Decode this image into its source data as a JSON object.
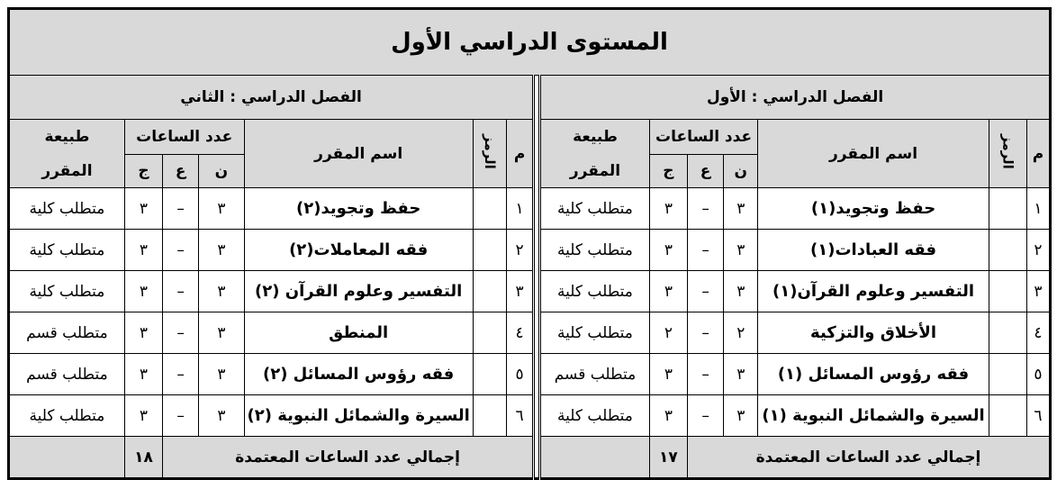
{
  "title": "المستوى الدراسي الأول",
  "headers": {
    "num": "م",
    "code": "الرمز",
    "name": "اسم المقرر",
    "hours": "عدد الساعات",
    "n": "ن",
    "e": "ع",
    "j": "ج",
    "type_line1": "طبيعة",
    "type_line2": "المقرر",
    "total_label": "إجمالي عدد الساعات المعتمدة"
  },
  "semesters": [
    {
      "label": "الفصل الدراسي : الأول",
      "total": "١٧",
      "courses": [
        {
          "num": "١",
          "code": "",
          "name": "حفظ وتجويد(١)",
          "n": "٣",
          "e": "–",
          "j": "٣",
          "type": "متطلب كلية"
        },
        {
          "num": "٢",
          "code": "",
          "name": "فقه العبادات(١)",
          "n": "٣",
          "e": "–",
          "j": "٣",
          "type": "متطلب كلية"
        },
        {
          "num": "٣",
          "code": "",
          "name": "التفسير وعلوم القرآن(١)",
          "n": "٣",
          "e": "–",
          "j": "٣",
          "type": "متطلب كلية"
        },
        {
          "num": "٤",
          "code": "",
          "name": "الأخلاق والتزكية",
          "n": "٢",
          "e": "–",
          "j": "٢",
          "type": "متطلب كلية"
        },
        {
          "num": "٥",
          "code": "",
          "name": "فقه رؤوس المسائل (١)",
          "n": "٣",
          "e": "–",
          "j": "٣",
          "type": "متطلب قسم"
        },
        {
          "num": "٦",
          "code": "",
          "name": "السيرة والشمائل النبوية (١)",
          "n": "٣",
          "e": "–",
          "j": "٣",
          "type": "متطلب كلية"
        }
      ]
    },
    {
      "label": "الفصل الدراسي : الثاني",
      "total": "١٨",
      "courses": [
        {
          "num": "١",
          "code": "",
          "name": "حفظ وتجويد(٢)",
          "n": "٣",
          "e": "–",
          "j": "٣",
          "type": "متطلب كلية"
        },
        {
          "num": "٢",
          "code": "",
          "name": "فقه المعاملات(٢)",
          "n": "٣",
          "e": "–",
          "j": "٣",
          "type": "متطلب كلية"
        },
        {
          "num": "٣",
          "code": "",
          "name": "التفسير وعلوم القرآن (٢)",
          "n": "٣",
          "e": "–",
          "j": "٣",
          "type": "متطلب كلية"
        },
        {
          "num": "٤",
          "code": "",
          "name": "المنطق",
          "n": "٣",
          "e": "–",
          "j": "٣",
          "type": "متطلب قسم"
        },
        {
          "num": "٥",
          "code": "",
          "name": "فقه رؤوس المسائل (٢)",
          "n": "٣",
          "e": "–",
          "j": "٣",
          "type": "متطلب قسم"
        },
        {
          "num": "٦",
          "code": "",
          "name": "السيرة والشمائل النبوية (٢)",
          "n": "٣",
          "e": "–",
          "j": "٣",
          "type": "متطلب كلية"
        }
      ]
    }
  ]
}
